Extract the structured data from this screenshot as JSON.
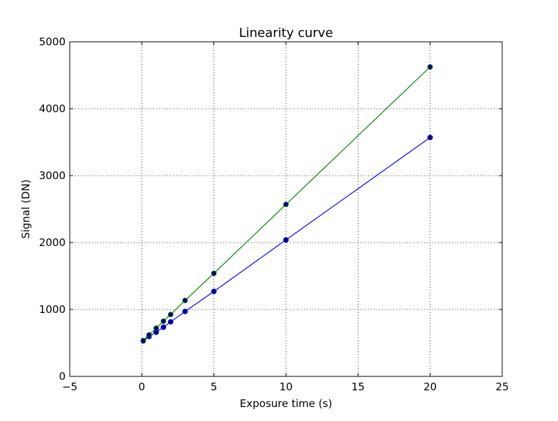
{
  "chart_data": {
    "type": "line",
    "title": "Linearity curve",
    "xlabel": "Exposure time (s)",
    "ylabel": "Signal (DN)",
    "xlim": [
      -5,
      25
    ],
    "ylim": [
      0,
      5000
    ],
    "xticks": [
      -5,
      0,
      5,
      10,
      15,
      20,
      25
    ],
    "xtick_labels": [
      "−5",
      "0",
      "5",
      "10",
      "15",
      "20",
      "25"
    ],
    "yticks": [
      0,
      1000,
      2000,
      3000,
      4000,
      5000
    ],
    "ytick_labels": [
      "0",
      "1000",
      "2000",
      "3000",
      "4000",
      "5000"
    ],
    "grid": true,
    "marker_color": "#000080",
    "series": [
      {
        "color": "#0000ff",
        "x": [
          0.1,
          0.5,
          1,
          1.5,
          2,
          3,
          5,
          10,
          20
        ],
        "y": [
          530,
          595,
          660,
          735,
          815,
          970,
          1270,
          2040,
          3570
        ]
      },
      {
        "color": "#008000",
        "x": [
          0.1,
          0.5,
          1,
          1.5,
          2,
          3,
          5,
          10,
          20
        ],
        "y": [
          535,
          620,
          720,
          825,
          925,
          1135,
          1540,
          2570,
          4625
        ]
      }
    ]
  }
}
